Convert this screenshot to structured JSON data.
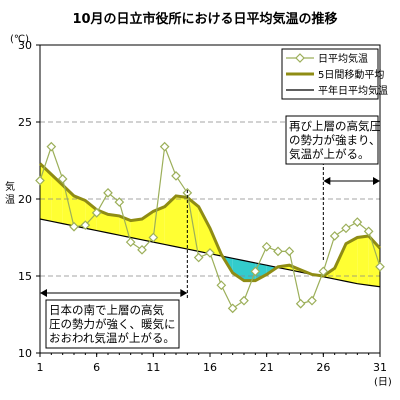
{
  "chart_data": {
    "type": "line",
    "title": "10月の日立市役所における日平均気温の推移",
    "ylabel": "気温",
    "y_unit": "(℃)",
    "x_unit": "(日)",
    "ylim": [
      10,
      30
    ],
    "y_ticks": [
      "10",
      "15",
      "20",
      "25",
      "30"
    ],
    "x_ticks": [
      "1",
      "6",
      "11",
      "16",
      "21",
      "26",
      "31"
    ],
    "xlim": [
      1,
      31
    ],
    "grid": "horizontal dashed",
    "legend_position": "top-right",
    "x": [
      1,
      2,
      3,
      4,
      5,
      6,
      7,
      8,
      9,
      10,
      11,
      12,
      13,
      14,
      15,
      16,
      17,
      18,
      19,
      20,
      21,
      22,
      23,
      24,
      25,
      26,
      27,
      28,
      29,
      30,
      31
    ],
    "series": [
      {
        "name": "日平均気温",
        "color": "#9caf5a",
        "values": [
          21.2,
          23.4,
          21.3,
          18.2,
          18.3,
          19.1,
          20.4,
          19.8,
          17.2,
          16.7,
          17.5,
          23.4,
          21.5,
          20.4,
          16.2,
          16.5,
          14.4,
          12.9,
          13.4,
          15.3,
          16.9,
          16.6,
          16.6,
          13.2,
          13.4,
          15.3,
          17.6,
          18.1,
          18.5,
          17.9,
          15.6
        ]
      },
      {
        "name": "5日間移動平均",
        "color": "#8f8c14",
        "values": [
          22.3,
          21.6,
          20.9,
          20.2,
          19.9,
          19.3,
          19.0,
          18.9,
          18.6,
          18.7,
          19.2,
          19.5,
          20.2,
          20.1,
          19.5,
          18.1,
          16.4,
          15.2,
          14.7,
          14.7,
          15.1,
          15.6,
          15.7,
          15.4,
          15.1,
          15.0,
          15.5,
          17.1,
          17.5,
          17.6,
          16.8
        ]
      },
      {
        "name": "平年日平均気温",
        "color": "#000000",
        "values": [
          18.7,
          18.55,
          18.4,
          18.25,
          18.1,
          17.95,
          17.8,
          17.65,
          17.5,
          17.35,
          17.2,
          17.05,
          16.9,
          16.75,
          16.6,
          16.45,
          16.3,
          16.15,
          16.0,
          15.85,
          15.7,
          15.55,
          15.4,
          15.25,
          15.1,
          14.95,
          14.8,
          14.65,
          14.5,
          14.4,
          14.3
        ]
      }
    ],
    "fill_above_color": "#ffff33",
    "fill_below_color": "#33cccc",
    "annotations": [
      {
        "lines": [
          "日本の南で上層の高気",
          "圧の勢力が強く、暖気に",
          "おおわれ気温が上がる。"
        ],
        "period": [
          1,
          14
        ]
      },
      {
        "lines": [
          "再び上層の高気圧",
          "の勢力が強まり、",
          "気温が上がる。"
        ],
        "period": [
          26,
          31
        ]
      }
    ]
  }
}
